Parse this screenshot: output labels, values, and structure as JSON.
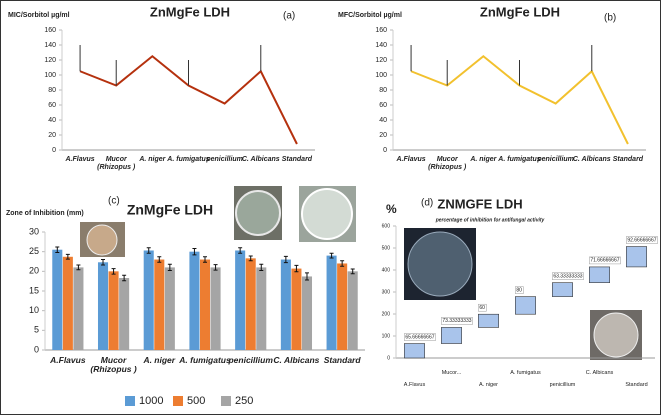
{
  "chart_data": [
    {
      "type": "line",
      "title": "ZnMgFe LDH",
      "y_label": "MIC/Sorbitol µg/ml",
      "panel": "(a)",
      "categories": [
        "A.Flavus",
        "Mucor (Rhizopus )",
        "A. niger",
        "A. fumigatus",
        "penicillium",
        "C. Albicans",
        "Standard"
      ],
      "values": [
        105,
        86,
        125,
        86,
        62,
        105,
        8
      ],
      "errors": [
        35,
        34,
        null,
        34,
        null,
        35,
        null
      ],
      "color": "#b5310e",
      "ylim": [
        0,
        160
      ],
      "yticks": [
        0,
        20,
        40,
        60,
        80,
        100,
        120,
        140,
        160
      ]
    },
    {
      "type": "line",
      "title": "ZnMgFe LDH",
      "y_label": "MFC/Sorbitol µg/ml",
      "panel": "(b)",
      "categories": [
        "A.Flavus",
        "Mucor (Rhizopus )",
        "A. niger",
        "A. fumigatus",
        "penicillium",
        "C. Albicans",
        "Standard"
      ],
      "values": [
        105,
        86,
        125,
        86,
        62,
        105,
        8
      ],
      "errors": [
        35,
        34,
        null,
        34,
        null,
        35,
        null
      ],
      "color": "#f2c12e",
      "ylim": [
        0,
        160
      ],
      "yticks": [
        0,
        20,
        40,
        60,
        80,
        100,
        120,
        140,
        160
      ]
    },
    {
      "type": "bar",
      "title": "ZnMgFe LDH",
      "y_label": "Zone of Inhibition (mm)",
      "panel": "(c)",
      "categories": [
        "A.Flavus",
        "Mucor (Rhizopus )",
        "A. niger",
        "A. fumigatus",
        "penicillium",
        "C. Albicans",
        "Standard"
      ],
      "series": [
        {
          "name": "1000",
          "color": "#5b9bd5",
          "values": [
            25.5,
            22.3,
            25.3,
            25,
            25.3,
            23,
            24
          ],
          "errors": [
            0.7,
            0.7,
            0.7,
            0.8,
            0.7,
            0.8,
            0.6
          ]
        },
        {
          "name": "500",
          "color": "#ed7d31",
          "values": [
            23.7,
            20,
            23,
            23,
            23.3,
            20.7,
            22
          ],
          "errors": [
            0.6,
            0.7,
            0.7,
            0.7,
            0.6,
            0.8,
            0.7
          ]
        },
        {
          "name": "250",
          "color": "#a5a5a5",
          "values": [
            21,
            18.3,
            21,
            21,
            21,
            18.7,
            20
          ],
          "errors": [
            0.6,
            0.7,
            0.8,
            0.7,
            0.8,
            0.9,
            0.6
          ]
        }
      ],
      "ylim": [
        0,
        30
      ],
      "yticks": [
        0,
        5,
        10,
        15,
        20,
        25,
        30
      ]
    },
    {
      "type": "waterfall",
      "title": "ZNMGFE LDH",
      "subtitle": "percentage of inhibition for antifungal activity",
      "y_label": "%",
      "panel": "(d)",
      "categories": [
        "A.Flavus",
        "Mucor...",
        "A. niger",
        "A. fumigatus",
        "penicillium",
        "C. Albicans",
        "Standard"
      ],
      "values": [
        65.66666667,
        73.33333333,
        60,
        80,
        63.33333333,
        71.66666667,
        92.66666667
      ],
      "color": "#a9c4eb",
      "ylim": [
        0,
        600
      ],
      "yticks": [
        0,
        100,
        200,
        300,
        400,
        500,
        600
      ]
    }
  ]
}
